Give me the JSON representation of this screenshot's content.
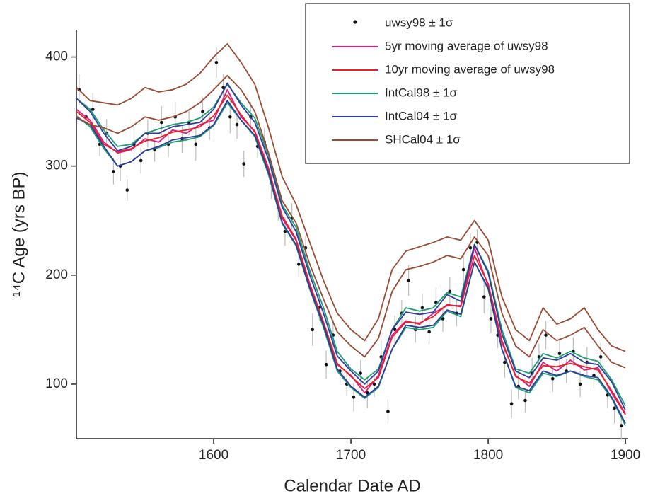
{
  "chart_data": {
    "type": "line",
    "xlabel": "Calendar Date AD",
    "ylabel": "¹⁴C Age (yrs BP)",
    "xlim": [
      1500,
      1902
    ],
    "ylim": [
      50,
      425
    ],
    "xticks": [
      1600,
      1700,
      1800,
      1900
    ],
    "yticks": [
      100,
      200,
      300,
      400
    ],
    "legend": "top right",
    "x": [
      1500,
      1510,
      1520,
      1530,
      1540,
      1550,
      1560,
      1570,
      1580,
      1590,
      1600,
      1610,
      1620,
      1630,
      1640,
      1650,
      1660,
      1670,
      1680,
      1690,
      1700,
      1710,
      1720,
      1730,
      1740,
      1750,
      1760,
      1770,
      1780,
      1790,
      1800,
      1810,
      1820,
      1830,
      1840,
      1850,
      1860,
      1870,
      1880,
      1890,
      1900
    ],
    "series": [
      {
        "name": "uwsy98 ± 1σ",
        "type": "scatter",
        "color": "#111111",
        "error_color": "#bdbdbd",
        "x": [
          1502,
          1507,
          1512,
          1517,
          1522,
          1527,
          1532,
          1537,
          1542,
          1547,
          1552,
          1557,
          1562,
          1567,
          1572,
          1577,
          1582,
          1587,
          1592,
          1597,
          1602,
          1607,
          1612,
          1617,
          1622,
          1627,
          1632,
          1637,
          1642,
          1647,
          1652,
          1657,
          1662,
          1667,
          1672,
          1677,
          1682,
          1687,
          1692,
          1697,
          1702,
          1707,
          1712,
          1717,
          1722,
          1727,
          1732,
          1737,
          1742,
          1747,
          1752,
          1757,
          1762,
          1767,
          1772,
          1777,
          1782,
          1787,
          1792,
          1797,
          1802,
          1807,
          1812,
          1817,
          1822,
          1827,
          1832,
          1837,
          1842,
          1847,
          1852,
          1857,
          1862,
          1867,
          1872,
          1877,
          1882,
          1887,
          1892,
          1897
        ],
        "values": [
          370,
          345,
          352,
          320,
          330,
          295,
          300,
          278,
          320,
          305,
          330,
          315,
          340,
          320,
          345,
          325,
          340,
          320,
          350,
          335,
          395,
          372,
          345,
          338,
          302,
          345,
          318,
          322,
          285,
          262,
          240,
          252,
          210,
          225,
          150,
          170,
          118,
          145,
          112,
          100,
          88,
          110,
          92,
          100,
          125,
          75,
          150,
          165,
          195,
          150,
          170,
          148,
          175,
          160,
          185,
          165,
          205,
          225,
          230,
          180,
          160,
          145,
          120,
          82,
          98,
          85,
          110,
          125,
          145,
          105,
          128,
          112,
          130,
          100,
          120,
          108,
          125,
          90,
          78,
          62
        ],
        "errors": [
          14,
          12,
          15,
          11,
          13,
          12,
          14,
          10,
          16,
          12,
          13,
          11,
          15,
          12,
          14,
          13,
          12,
          15,
          13,
          11,
          14,
          12,
          15,
          13,
          12,
          14,
          11,
          13,
          15,
          12,
          13,
          14,
          12,
          11,
          15,
          12,
          13,
          14,
          12,
          11,
          13,
          12,
          14,
          12,
          15,
          11,
          13,
          12,
          14,
          12,
          13,
          11,
          14,
          12,
          13,
          12,
          14,
          13,
          12,
          15,
          13,
          12,
          14,
          13,
          12,
          11,
          14,
          12,
          13,
          12,
          14,
          11,
          13,
          12,
          14,
          12,
          13,
          12,
          14,
          13
        ]
      },
      {
        "name": "5yr moving average of uwsy98",
        "color": "#e0197a",
        "values": [
          352,
          342,
          322,
          312,
          315,
          325,
          322,
          333,
          330,
          338,
          342,
          370,
          345,
          332,
          298,
          252,
          232,
          190,
          155,
          118,
          108,
          92,
          108,
          145,
          158,
          155,
          165,
          172,
          172,
          225,
          190,
          138,
          108,
          98,
          120,
          112,
          122,
          113,
          115,
          92,
          72
        ]
      },
      {
        "name": "10yr moving average of uwsy98",
        "color": "#e8202a",
        "values": [
          350,
          340,
          320,
          313,
          316,
          323,
          326,
          331,
          333,
          336,
          346,
          365,
          347,
          331,
          296,
          254,
          233,
          192,
          157,
          119,
          107,
          96,
          106,
          143,
          157,
          156,
          162,
          173,
          171,
          218,
          192,
          140,
          107,
          101,
          117,
          116,
          119,
          116,
          113,
          94,
          73
        ]
      },
      {
        "name": "IntCal98 ± 1σ",
        "color": "#1a9e6e",
        "upper": [
          362,
          352,
          333,
          318,
          320,
          330,
          334,
          338,
          340,
          344,
          354,
          375,
          358,
          344,
          310,
          264,
          244,
          204,
          170,
          130,
          114,
          104,
          114,
          150,
          170,
          167,
          170,
          184,
          180,
          228,
          204,
          150,
          114,
          110,
          128,
          124,
          130,
          124,
          121,
          104,
          80
        ],
        "lower": [
          346,
          336,
          316,
          300,
          304,
          314,
          317,
          322,
          324,
          327,
          337,
          358,
          342,
          327,
          292,
          247,
          227,
          187,
          152,
          112,
          97,
          87,
          97,
          132,
          152,
          150,
          152,
          167,
          162,
          212,
          187,
          132,
          97,
          92,
          110,
          107,
          112,
          107,
          104,
          87,
          62
        ]
      },
      {
        "name": "IntCal04 ± 1σ",
        "color": "#2e3a9e",
        "upper": [
          362,
          350,
          330,
          314,
          318,
          330,
          330,
          336,
          338,
          340,
          352,
          376,
          356,
          340,
          306,
          262,
          240,
          200,
          165,
          126,
          112,
          100,
          112,
          150,
          166,
          164,
          166,
          182,
          176,
          228,
          202,
          146,
          112,
          106,
          124,
          122,
          128,
          120,
          118,
          102,
          76
        ],
        "lower": [
          344,
          338,
          318,
          300,
          304,
          314,
          318,
          324,
          326,
          328,
          338,
          360,
          342,
          328,
          294,
          248,
          228,
          188,
          154,
          114,
          98,
          88,
          98,
          132,
          154,
          152,
          154,
          168,
          164,
          212,
          188,
          132,
          98,
          94,
          112,
          108,
          112,
          108,
          106,
          88,
          64
        ]
      },
      {
        "name": "SHCal04 ± 1σ",
        "color": "#9a4a32",
        "upper": [
          372,
          360,
          358,
          356,
          362,
          372,
          368,
          370,
          375,
          385,
          400,
          412,
          395,
          375,
          335,
          290,
          265,
          230,
          195,
          165,
          150,
          140,
          160,
          205,
          222,
          226,
          230,
          235,
          232,
          250,
          232,
          180,
          150,
          140,
          170,
          155,
          160,
          170,
          150,
          135,
          130
        ],
        "lower": [
          345,
          338,
          335,
          330,
          336,
          345,
          342,
          345,
          350,
          358,
          370,
          383,
          370,
          350,
          312,
          268,
          248,
          210,
          178,
          148,
          135,
          125,
          142,
          185,
          205,
          208,
          212,
          218,
          215,
          235,
          218,
          165,
          135,
          125,
          150,
          140,
          145,
          152,
          135,
          120,
          115
        ]
      }
    ]
  }
}
